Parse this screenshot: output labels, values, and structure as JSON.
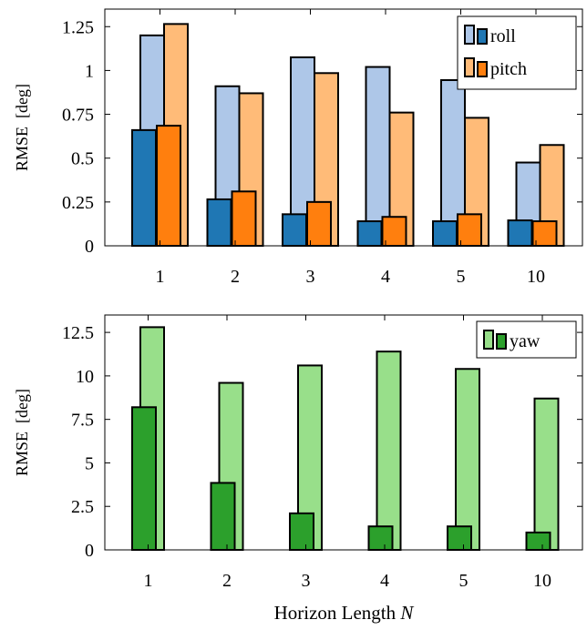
{
  "chart_data": [
    {
      "type": "bar",
      "categories": [
        "1",
        "2",
        "3",
        "4",
        "5",
        "10"
      ],
      "ylabel": "RMSE  [deg]",
      "xlabel": "",
      "ylim": [
        0,
        1.35
      ],
      "yticks": [
        0,
        0.25,
        0.5,
        0.75,
        1,
        1.25
      ],
      "ytick_labels": [
        "0",
        "0.25",
        "0.5",
        "0.75",
        "1",
        "1.25"
      ],
      "legend_position": "top-right",
      "series": [
        {
          "name": "roll",
          "dark_color": "#1f77b4",
          "light_color": "#aec7e8",
          "values_dark": [
            0.66,
            0.265,
            0.18,
            0.14,
            0.14,
            0.145
          ],
          "values_light": [
            1.2,
            0.91,
            1.075,
            1.02,
            0.945,
            0.475
          ]
        },
        {
          "name": "pitch",
          "dark_color": "#ff7f0e",
          "light_color": "#ffbb78",
          "values_dark": [
            0.685,
            0.31,
            0.25,
            0.165,
            0.18,
            0.14
          ],
          "values_light": [
            1.265,
            0.87,
            0.985,
            0.76,
            0.73,
            0.575
          ]
        }
      ]
    },
    {
      "type": "bar",
      "categories": [
        "1",
        "2",
        "3",
        "4",
        "5",
        "10"
      ],
      "ylabel": "RMSE  [deg]",
      "xlabel": "Horizon Length",
      "xlabel_var": "N",
      "ylim": [
        0,
        13.5
      ],
      "yticks": [
        0,
        2.5,
        5,
        7.5,
        10,
        12.5
      ],
      "ytick_labels": [
        "0",
        "2.5",
        "5",
        "7.5",
        "10",
        "12.5"
      ],
      "legend_position": "top-right",
      "series": [
        {
          "name": "yaw",
          "dark_color": "#2ca02c",
          "light_color": "#98df8a",
          "values_dark": [
            8.2,
            3.85,
            2.1,
            1.35,
            1.35,
            1.0
          ],
          "values_light": [
            12.8,
            9.6,
            10.6,
            11.4,
            10.4,
            8.7
          ]
        }
      ]
    }
  ]
}
